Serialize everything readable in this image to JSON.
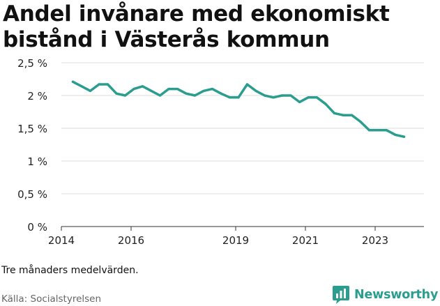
{
  "title": "Andel invånare med ekonomiskt bistånd i Västerås kommun",
  "note": "Tre månaders medelvärden.",
  "source": "Källa: Socialstyrelsen",
  "brand": {
    "name": "Newsworthy",
    "icon": "bar-chart-icon",
    "color": "#2a9d8f"
  },
  "chart_data": {
    "type": "line",
    "title": "Andel invånare med ekonomiskt bistånd i Västerås kommun",
    "xlabel": "",
    "ylabel": "",
    "ylim": [
      0,
      2.5
    ],
    "xlim": [
      2014.0,
      2024.4
    ],
    "y_ticks": [
      {
        "value": 0,
        "label": "0 %"
      },
      {
        "value": 0.5,
        "label": "0,5 %"
      },
      {
        "value": 1,
        "label": "1 %"
      },
      {
        "value": 1.5,
        "label": "1,5 %"
      },
      {
        "value": 2,
        "label": "2 %"
      },
      {
        "value": 2.5,
        "label": "2,5 %"
      }
    ],
    "x_ticks": [
      {
        "value": 2014,
        "label": "2014"
      },
      {
        "value": 2016,
        "label": "2016"
      },
      {
        "value": 2019,
        "label": "2019"
      },
      {
        "value": 2021,
        "label": "2021"
      },
      {
        "value": 2023,
        "label": "2023"
      }
    ],
    "grid": true,
    "line_color": "#2a9d8f",
    "series": [
      {
        "x": [
          2014.33,
          2014.58,
          2014.83,
          2015.08,
          2015.33,
          2015.58,
          2015.83,
          2016.08,
          2016.33,
          2016.58,
          2016.83,
          2017.08,
          2017.33,
          2017.58,
          2017.83,
          2018.08,
          2018.33,
          2018.58,
          2018.83,
          2019.08,
          2019.33,
          2019.58,
          2019.83,
          2020.08,
          2020.33,
          2020.58,
          2020.83,
          2021.08,
          2021.33,
          2021.58,
          2021.83,
          2022.08,
          2022.33,
          2022.58,
          2022.83,
          2023.08,
          2023.33,
          2023.58,
          2023.83
        ],
        "y": [
          2.21,
          2.14,
          2.07,
          2.17,
          2.17,
          2.03,
          2.0,
          2.1,
          2.14,
          2.07,
          2.0,
          2.1,
          2.1,
          2.03,
          2.0,
          2.07,
          2.1,
          2.03,
          1.97,
          1.97,
          2.17,
          2.07,
          2.0,
          1.97,
          2.0,
          2.0,
          1.9,
          1.97,
          1.97,
          1.87,
          1.73,
          1.7,
          1.7,
          1.6,
          1.47,
          1.47,
          1.47,
          1.4,
          1.37
        ]
      }
    ]
  }
}
